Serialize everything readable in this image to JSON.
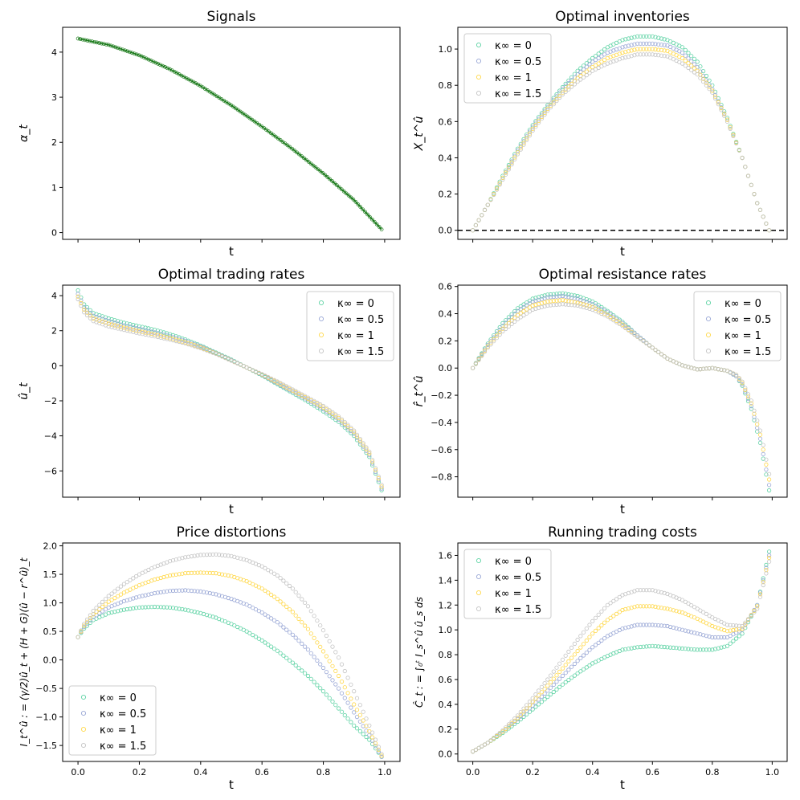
{
  "figure": {
    "background": "#ffffff"
  },
  "series_styles": [
    {
      "name": "κ∞ = 0",
      "color": "#5fd3a5"
    },
    {
      "name": "κ∞ = 0.5",
      "color": "#9aa8d6"
    },
    {
      "name": "κ∞ = 1",
      "color": "#ffd84a"
    },
    {
      "name": "κ∞ = 1.5",
      "color": "#c4c4c4"
    }
  ],
  "chart_data": [
    {
      "id": "signals",
      "type": "scatter",
      "title": "Signals",
      "xlabel": "t",
      "ylabel": "α_t",
      "xlim": [
        -0.05,
        1.05
      ],
      "ylim": [
        -0.15,
        4.55
      ],
      "xticks": [
        0,
        0.2,
        0.4,
        0.6,
        0.8,
        1.0
      ],
      "xticklabels": [],
      "yticks": [
        0,
        1,
        2,
        3,
        4
      ],
      "yticklabels": [
        "0",
        "1",
        "2",
        "3",
        "4"
      ],
      "legend": null,
      "line_series": {
        "name": "signal",
        "color": "#1a7a1a",
        "x": [
          0,
          0.1,
          0.2,
          0.3,
          0.4,
          0.5,
          0.6,
          0.7,
          0.8,
          0.9,
          0.99
        ],
        "values": [
          4.3,
          4.16,
          3.93,
          3.62,
          3.25,
          2.82,
          2.35,
          1.85,
          1.31,
          0.72,
          0.07
        ]
      }
    },
    {
      "id": "inventories",
      "type": "scatter",
      "title": "Optimal inventories",
      "xlabel": "t",
      "ylabel": "X_t^û",
      "xlim": [
        -0.05,
        1.05
      ],
      "ylim": [
        -0.05,
        1.12
      ],
      "xticks": [
        0,
        0.2,
        0.4,
        0.6,
        0.8,
        1.0
      ],
      "xticklabels": [],
      "yticks": [
        0,
        0.2,
        0.4,
        0.6,
        0.8,
        1.0
      ],
      "yticklabels": [
        "0.0",
        "0.2",
        "0.4",
        "0.6",
        "0.8",
        "1.0"
      ],
      "legend": "upper-left",
      "hline": 0,
      "x": [
        0,
        0.05,
        0.1,
        0.15,
        0.2,
        0.25,
        0.3,
        0.35,
        0.4,
        0.45,
        0.5,
        0.55,
        0.6,
        0.65,
        0.7,
        0.75,
        0.8,
        0.85,
        0.9,
        0.95,
        0.99
      ],
      "series": [
        {
          "name": "κ∞ = 0",
          "values": [
            0.0,
            0.14,
            0.3,
            0.45,
            0.58,
            0.69,
            0.79,
            0.88,
            0.95,
            1.01,
            1.05,
            1.07,
            1.07,
            1.05,
            1.01,
            0.93,
            0.8,
            0.62,
            0.4,
            0.15,
            0.0
          ]
        },
        {
          "name": "κ∞ = 0.5",
          "values": [
            0.0,
            0.14,
            0.29,
            0.44,
            0.57,
            0.68,
            0.78,
            0.86,
            0.93,
            0.98,
            1.01,
            1.03,
            1.03,
            1.02,
            0.98,
            0.9,
            0.78,
            0.61,
            0.4,
            0.15,
            0.0
          ]
        },
        {
          "name": "κ∞ = 1",
          "values": [
            0.0,
            0.14,
            0.29,
            0.43,
            0.56,
            0.67,
            0.76,
            0.84,
            0.9,
            0.95,
            0.98,
            1.0,
            1.0,
            0.99,
            0.95,
            0.88,
            0.77,
            0.61,
            0.4,
            0.15,
            0.0
          ]
        },
        {
          "name": "κ∞ = 1.5",
          "values": [
            0.0,
            0.14,
            0.28,
            0.42,
            0.55,
            0.66,
            0.75,
            0.82,
            0.88,
            0.92,
            0.95,
            0.97,
            0.97,
            0.96,
            0.92,
            0.86,
            0.76,
            0.6,
            0.4,
            0.15,
            0.0
          ]
        }
      ]
    },
    {
      "id": "trading-rates",
      "type": "scatter",
      "title": "Optimal trading rates",
      "xlabel": "t",
      "ylabel": "û_t",
      "xlim": [
        -0.05,
        1.05
      ],
      "ylim": [
        -7.5,
        4.6
      ],
      "xticks": [
        0,
        0.2,
        0.4,
        0.6,
        0.8,
        1.0
      ],
      "xticklabels": [],
      "yticks": [
        -6,
        -4,
        -2,
        0,
        2,
        4
      ],
      "yticklabels": [
        "−6",
        "−4",
        "−2",
        "0",
        "2",
        "4"
      ],
      "legend": "upper-right",
      "x": [
        0,
        0.02,
        0.05,
        0.1,
        0.15,
        0.2,
        0.25,
        0.3,
        0.35,
        0.4,
        0.45,
        0.5,
        0.55,
        0.6,
        0.65,
        0.7,
        0.75,
        0.8,
        0.85,
        0.9,
        0.95,
        0.99
      ],
      "series": [
        {
          "name": "κ∞ = 0",
          "values": [
            4.3,
            3.5,
            3.0,
            2.7,
            2.45,
            2.25,
            2.05,
            1.8,
            1.5,
            1.15,
            0.75,
            0.35,
            -0.1,
            -0.55,
            -1.05,
            -1.55,
            -2.05,
            -2.6,
            -3.2,
            -4.0,
            -5.2,
            -7.1
          ]
        },
        {
          "name": "κ∞ = 0.5",
          "values": [
            4.1,
            3.35,
            2.85,
            2.55,
            2.3,
            2.1,
            1.9,
            1.68,
            1.42,
            1.1,
            0.72,
            0.32,
            -0.1,
            -0.52,
            -1.0,
            -1.48,
            -1.95,
            -2.48,
            -3.08,
            -3.88,
            -5.1,
            -7.0
          ]
        },
        {
          "name": "κ∞ = 1",
          "values": [
            3.95,
            3.2,
            2.7,
            2.4,
            2.17,
            1.97,
            1.79,
            1.58,
            1.34,
            1.05,
            0.7,
            0.3,
            -0.1,
            -0.5,
            -0.95,
            -1.42,
            -1.88,
            -2.38,
            -2.98,
            -3.78,
            -5.0,
            -6.9
          ]
        },
        {
          "name": "κ∞ = 1.5",
          "values": [
            3.8,
            3.05,
            2.55,
            2.25,
            2.05,
            1.85,
            1.68,
            1.5,
            1.28,
            1.01,
            0.68,
            0.29,
            -0.1,
            -0.48,
            -0.9,
            -1.36,
            -1.82,
            -2.3,
            -2.9,
            -3.7,
            -4.9,
            -6.8
          ]
        }
      ]
    },
    {
      "id": "resistance-rates",
      "type": "scatter",
      "title": "Optimal resistance rates",
      "xlabel": "t",
      "ylabel": "r̂_t^û",
      "xlim": [
        -0.05,
        1.05
      ],
      "ylim": [
        -0.95,
        0.61
      ],
      "xticks": [
        0,
        0.2,
        0.4,
        0.6,
        0.8,
        1.0
      ],
      "xticklabels": [],
      "yticks": [
        -0.8,
        -0.6,
        -0.4,
        -0.2,
        0.0,
        0.2,
        0.4,
        0.6
      ],
      "yticklabels": [
        "−0.8",
        "−0.6",
        "−0.4",
        "−0.2",
        "0.0",
        "0.2",
        "0.4",
        "0.6"
      ],
      "legend": "upper-right",
      "x": [
        0,
        0.05,
        0.1,
        0.15,
        0.2,
        0.25,
        0.3,
        0.35,
        0.4,
        0.45,
        0.5,
        0.55,
        0.6,
        0.65,
        0.7,
        0.75,
        0.8,
        0.85,
        0.88,
        0.9,
        0.93,
        0.96,
        0.99
      ],
      "series": [
        {
          "name": "κ∞ = 0",
          "values": [
            0.0,
            0.18,
            0.33,
            0.44,
            0.51,
            0.54,
            0.55,
            0.53,
            0.49,
            0.42,
            0.34,
            0.24,
            0.15,
            0.07,
            0.02,
            -0.01,
            0.0,
            -0.02,
            -0.06,
            -0.13,
            -0.3,
            -0.55,
            -0.9
          ]
        },
        {
          "name": "κ∞ = 0.5",
          "values": [
            0.0,
            0.17,
            0.31,
            0.42,
            0.49,
            0.52,
            0.53,
            0.51,
            0.47,
            0.41,
            0.33,
            0.24,
            0.15,
            0.07,
            0.02,
            -0.01,
            0.0,
            -0.02,
            -0.06,
            -0.12,
            -0.28,
            -0.52,
            -0.86
          ]
        },
        {
          "name": "κ∞ = 1",
          "values": [
            0.0,
            0.16,
            0.29,
            0.39,
            0.46,
            0.49,
            0.5,
            0.48,
            0.45,
            0.39,
            0.32,
            0.23,
            0.15,
            0.07,
            0.02,
            -0.01,
            0.0,
            -0.02,
            -0.05,
            -0.11,
            -0.26,
            -0.49,
            -0.82
          ]
        },
        {
          "name": "κ∞ = 1.5",
          "values": [
            0.0,
            0.15,
            0.27,
            0.36,
            0.43,
            0.46,
            0.47,
            0.46,
            0.43,
            0.38,
            0.31,
            0.23,
            0.15,
            0.07,
            0.02,
            -0.01,
            0.0,
            -0.02,
            -0.05,
            -0.1,
            -0.24,
            -0.46,
            -0.78
          ]
        }
      ]
    },
    {
      "id": "price-distortions",
      "type": "scatter",
      "title": "Price distortions",
      "xlabel": "t",
      "ylabel": "I_t^û : = (γ/2)û_t + (H + G)(û − r^û)_t",
      "xlim": [
        -0.05,
        1.05
      ],
      "ylim": [
        -1.78,
        2.05
      ],
      "xticks": [
        0,
        0.2,
        0.4,
        0.6,
        0.8,
        1.0
      ],
      "xticklabels": [
        "0.0",
        "0.2",
        "0.4",
        "0.6",
        "0.8",
        "1.0"
      ],
      "yticks": [
        -1.5,
        -1.0,
        -0.5,
        0.0,
        0.5,
        1.0,
        1.5,
        2.0
      ],
      "yticklabels": [
        "−1.5",
        "−1.0",
        "−0.5",
        "0.0",
        "0.5",
        "1.0",
        "1.5",
        "2.0"
      ],
      "legend": "lower-left",
      "x": [
        0,
        0.02,
        0.05,
        0.1,
        0.15,
        0.2,
        0.25,
        0.3,
        0.35,
        0.4,
        0.45,
        0.5,
        0.55,
        0.6,
        0.65,
        0.7,
        0.75,
        0.8,
        0.85,
        0.9,
        0.95,
        0.99
      ],
      "series": [
        {
          "name": "κ∞ = 0",
          "values": [
            0.4,
            0.55,
            0.7,
            0.82,
            0.88,
            0.92,
            0.93,
            0.92,
            0.88,
            0.82,
            0.74,
            0.63,
            0.5,
            0.34,
            0.16,
            -0.05,
            -0.28,
            -0.55,
            -0.85,
            -1.15,
            -1.4,
            -1.7
          ]
        },
        {
          "name": "κ∞ = 0.5",
          "values": [
            0.4,
            0.58,
            0.75,
            0.92,
            1.03,
            1.11,
            1.17,
            1.21,
            1.22,
            1.2,
            1.15,
            1.07,
            0.97,
            0.83,
            0.66,
            0.44,
            0.18,
            -0.14,
            -0.5,
            -0.92,
            -1.32,
            -1.7
          ]
        },
        {
          "name": "κ∞ = 1",
          "values": [
            0.4,
            0.6,
            0.8,
            1.02,
            1.18,
            1.31,
            1.41,
            1.48,
            1.52,
            1.53,
            1.52,
            1.47,
            1.38,
            1.25,
            1.07,
            0.84,
            0.54,
            0.15,
            -0.28,
            -0.78,
            -1.25,
            -1.68
          ]
        },
        {
          "name": "κ∞ = 1.5",
          "values": [
            0.4,
            0.63,
            0.86,
            1.12,
            1.33,
            1.5,
            1.63,
            1.73,
            1.8,
            1.84,
            1.85,
            1.82,
            1.75,
            1.64,
            1.48,
            1.25,
            0.94,
            0.52,
            0.04,
            -0.55,
            -1.15,
            -1.65
          ]
        }
      ]
    },
    {
      "id": "running-costs",
      "type": "scatter",
      "title": "Running trading costs",
      "xlabel": "t",
      "ylabel": "Ĉ_t : = ∫₀ᵗ I_s^û û_s ds",
      "xlim": [
        -0.05,
        1.05
      ],
      "ylim": [
        -0.06,
        1.7
      ],
      "xticks": [
        0,
        0.2,
        0.4,
        0.6,
        0.8,
        1.0
      ],
      "xticklabels": [
        "0.0",
        "0.2",
        "0.4",
        "0.6",
        "0.8",
        "1.0"
      ],
      "yticks": [
        0.0,
        0.2,
        0.4,
        0.6,
        0.8,
        1.0,
        1.2,
        1.4,
        1.6
      ],
      "yticklabels": [
        "0.0",
        "0.2",
        "0.4",
        "0.6",
        "0.8",
        "1.0",
        "1.2",
        "1.4",
        "1.6"
      ],
      "legend": "upper-left",
      "x": [
        0,
        0.05,
        0.1,
        0.15,
        0.2,
        0.25,
        0.3,
        0.35,
        0.4,
        0.45,
        0.5,
        0.55,
        0.6,
        0.65,
        0.7,
        0.75,
        0.8,
        0.85,
        0.9,
        0.95,
        0.99
      ],
      "series": [
        {
          "name": "κ∞ = 0",
          "values": [
            0.02,
            0.09,
            0.17,
            0.26,
            0.36,
            0.46,
            0.56,
            0.65,
            0.73,
            0.79,
            0.84,
            0.86,
            0.87,
            0.86,
            0.85,
            0.84,
            0.84,
            0.87,
            0.97,
            1.2,
            1.63
          ]
        },
        {
          "name": "κ∞ = 0.5",
          "values": [
            0.02,
            0.09,
            0.18,
            0.28,
            0.39,
            0.51,
            0.63,
            0.75,
            0.86,
            0.95,
            1.01,
            1.04,
            1.04,
            1.03,
            1.0,
            0.97,
            0.94,
            0.94,
            1.0,
            1.2,
            1.6
          ]
        },
        {
          "name": "κ∞ = 1",
          "values": [
            0.02,
            0.09,
            0.18,
            0.29,
            0.42,
            0.55,
            0.69,
            0.83,
            0.97,
            1.08,
            1.16,
            1.19,
            1.19,
            1.17,
            1.14,
            1.09,
            1.03,
            0.99,
            1.01,
            1.19,
            1.58
          ]
        },
        {
          "name": "κ∞ = 1.5",
          "values": [
            0.02,
            0.09,
            0.19,
            0.31,
            0.45,
            0.6,
            0.76,
            0.92,
            1.07,
            1.2,
            1.28,
            1.32,
            1.32,
            1.29,
            1.24,
            1.17,
            1.1,
            1.04,
            1.03,
            1.17,
            1.55
          ]
        }
      ]
    }
  ]
}
